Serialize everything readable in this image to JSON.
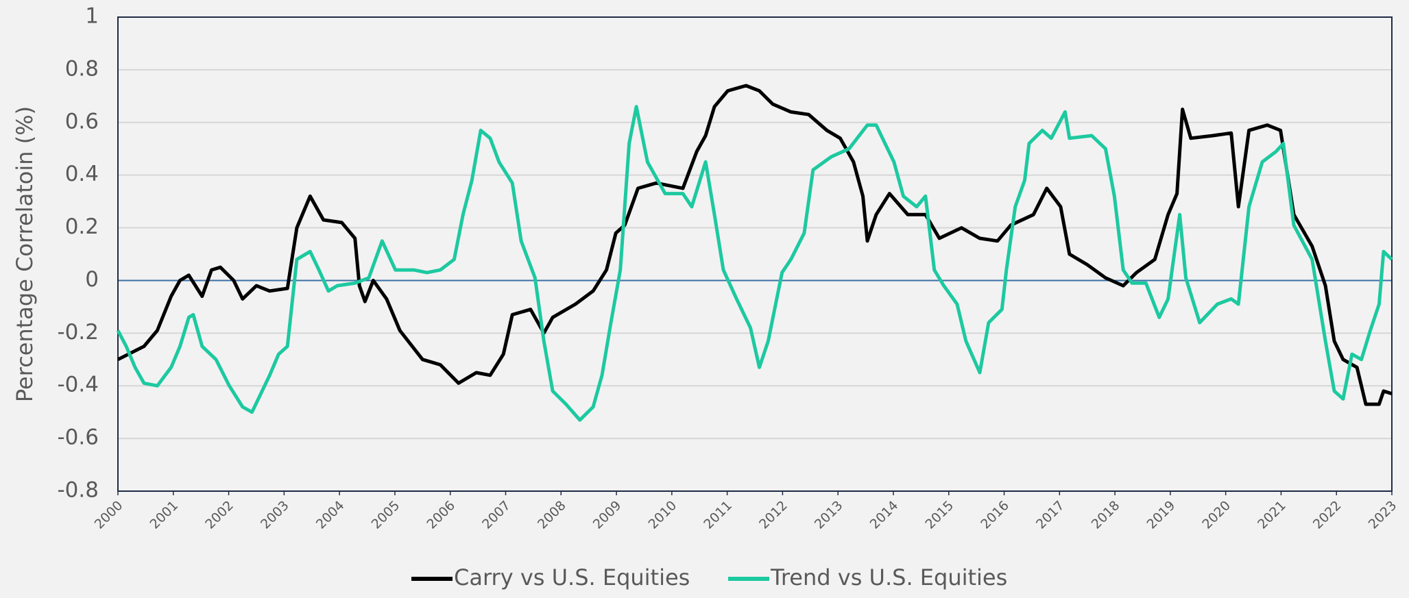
{
  "chart_data": {
    "type": "line",
    "y_label": "Percentage Correlatoin (%)",
    "xlim": [
      2000,
      2023
    ],
    "xticks": [
      2000,
      2001,
      2002,
      2003,
      2004,
      2005,
      2006,
      2007,
      2008,
      2009,
      2010,
      2011,
      2012,
      2013,
      2014,
      2015,
      2016,
      2017,
      2018,
      2019,
      2020,
      2021,
      2022,
      2023
    ],
    "ylim": [
      -0.8,
      1
    ],
    "yticks": [
      -0.8,
      -0.6,
      -0.4,
      -0.2,
      0,
      0.2,
      0.4,
      0.6,
      0.8,
      1
    ],
    "grid": true,
    "legend": "bottom",
    "series": [
      {
        "name": "Carry vs U.S. Equities",
        "color": "#000000",
        "x": [
          2000.0,
          2000.47,
          2000.71,
          2000.96,
          2001.12,
          2001.28,
          2001.52,
          2001.69,
          2001.85,
          2002.09,
          2002.25,
          2002.5,
          2002.74,
          2003.06,
          2003.23,
          2003.47,
          2003.71,
          2004.04,
          2004.28,
          2004.36,
          2004.46,
          2004.61,
          2004.85,
          2005.09,
          2005.5,
          2005.82,
          2006.15,
          2006.47,
          2006.72,
          2006.96,
          2007.12,
          2007.45,
          2007.69,
          2007.85,
          2008.26,
          2008.58,
          2008.82,
          2008.99,
          2009.15,
          2009.39,
          2009.72,
          2010.2,
          2010.45,
          2010.61,
          2010.77,
          2011.01,
          2011.34,
          2011.58,
          2011.82,
          2012.15,
          2012.47,
          2012.8,
          2013.04,
          2013.28,
          2013.45,
          2013.53,
          2013.69,
          2013.93,
          2014.26,
          2014.58,
          2014.83,
          2015.23,
          2015.56,
          2015.88,
          2016.12,
          2016.53,
          2016.77,
          2017.02,
          2017.18,
          2017.5,
          2017.83,
          2018.15,
          2018.39,
          2018.72,
          2018.96,
          2019.12,
          2019.22,
          2019.37,
          2019.77,
          2020.1,
          2020.23,
          2020.42,
          2020.75,
          2020.99,
          2021.23,
          2021.56,
          2021.8,
          2021.96,
          2022.12,
          2022.37,
          2022.53,
          2022.77,
          2022.85,
          2023.0
        ],
        "values": [
          -0.3,
          -0.25,
          -0.19,
          -0.06,
          0.0,
          0.02,
          -0.06,
          0.04,
          0.05,
          0.0,
          -0.07,
          -0.02,
          -0.04,
          -0.03,
          0.2,
          0.32,
          0.23,
          0.22,
          0.16,
          -0.02,
          -0.08,
          0.0,
          -0.07,
          -0.19,
          -0.3,
          -0.32,
          -0.39,
          -0.35,
          -0.36,
          -0.28,
          -0.13,
          -0.11,
          -0.2,
          -0.14,
          -0.09,
          -0.04,
          0.04,
          0.18,
          0.21,
          0.35,
          0.37,
          0.35,
          0.49,
          0.55,
          0.66,
          0.72,
          0.74,
          0.72,
          0.67,
          0.64,
          0.63,
          0.57,
          0.54,
          0.45,
          0.32,
          0.15,
          0.25,
          0.33,
          0.25,
          0.25,
          0.16,
          0.2,
          0.16,
          0.15,
          0.21,
          0.25,
          0.35,
          0.28,
          0.1,
          0.06,
          0.01,
          -0.02,
          0.03,
          0.08,
          0.25,
          0.33,
          0.65,
          0.54,
          0.55,
          0.56,
          0.28,
          0.57,
          0.59,
          0.57,
          0.25,
          0.13,
          -0.02,
          -0.23,
          -0.3,
          -0.33,
          -0.47,
          -0.47,
          -0.42,
          -0.43
        ]
      },
      {
        "name": "Trend vs U.S. Equities",
        "color": "#1dc9a0",
        "x": [
          2000.0,
          2000.15,
          2000.31,
          2000.47,
          2000.71,
          2000.96,
          2001.12,
          2001.28,
          2001.36,
          2001.52,
          2001.77,
          2002.01,
          2002.25,
          2002.42,
          2002.58,
          2002.74,
          2002.9,
          2003.06,
          2003.23,
          2003.47,
          2003.63,
          2003.8,
          2003.96,
          2004.28,
          2004.53,
          2004.77,
          2005.01,
          2005.34,
          2005.58,
          2005.82,
          2006.07,
          2006.23,
          2006.39,
          2006.55,
          2006.72,
          2006.88,
          2007.12,
          2007.28,
          2007.53,
          2007.69,
          2007.85,
          2008.09,
          2008.34,
          2008.58,
          2008.74,
          2008.9,
          2009.07,
          2009.23,
          2009.36,
          2009.56,
          2009.88,
          2010.2,
          2010.36,
          2010.61,
          2010.77,
          2010.93,
          2011.17,
          2011.42,
          2011.58,
          2011.74,
          2011.99,
          2012.15,
          2012.39,
          2012.55,
          2012.88,
          2013.2,
          2013.53,
          2013.69,
          2013.85,
          2014.01,
          2014.18,
          2014.42,
          2014.58,
          2014.74,
          2014.91,
          2015.15,
          2015.31,
          2015.56,
          2015.72,
          2015.96,
          2016.04,
          2016.2,
          2016.37,
          2016.45,
          2016.69,
          2016.85,
          2017.1,
          2017.18,
          2017.58,
          2017.83,
          2017.99,
          2018.15,
          2018.31,
          2018.56,
          2018.8,
          2018.96,
          2019.17,
          2019.28,
          2019.53,
          2019.85,
          2020.1,
          2020.23,
          2020.42,
          2020.66,
          2020.91,
          2021.04,
          2021.23,
          2021.56,
          2021.8,
          2021.96,
          2022.12,
          2022.28,
          2022.45,
          2022.61,
          2022.77,
          2022.85,
          2023.0
        ],
        "values": [
          -0.19,
          -0.25,
          -0.33,
          -0.39,
          -0.4,
          -0.33,
          -0.25,
          -0.14,
          -0.13,
          -0.25,
          -0.3,
          -0.4,
          -0.48,
          -0.5,
          -0.43,
          -0.36,
          -0.28,
          -0.25,
          0.08,
          0.11,
          0.04,
          -0.04,
          -0.02,
          -0.01,
          0.01,
          0.15,
          0.04,
          0.04,
          0.03,
          0.04,
          0.08,
          0.25,
          0.38,
          0.57,
          0.54,
          0.45,
          0.37,
          0.15,
          0.01,
          -0.23,
          -0.42,
          -0.47,
          -0.53,
          -0.48,
          -0.36,
          -0.16,
          0.04,
          0.52,
          0.66,
          0.45,
          0.33,
          0.33,
          0.28,
          0.45,
          0.25,
          0.04,
          -0.07,
          -0.18,
          -0.33,
          -0.23,
          0.03,
          0.08,
          0.18,
          0.42,
          0.47,
          0.5,
          0.59,
          0.59,
          0.52,
          0.45,
          0.32,
          0.28,
          0.32,
          0.04,
          -0.02,
          -0.09,
          -0.23,
          -0.35,
          -0.16,
          -0.11,
          0.04,
          0.28,
          0.38,
          0.52,
          0.57,
          0.54,
          0.64,
          0.54,
          0.55,
          0.5,
          0.32,
          0.04,
          -0.01,
          -0.01,
          -0.14,
          -0.07,
          0.25,
          0.01,
          -0.16,
          -0.09,
          -0.07,
          -0.09,
          0.28,
          0.45,
          0.49,
          0.52,
          0.21,
          0.08,
          -0.23,
          -0.42,
          -0.45,
          -0.28,
          -0.3,
          -0.19,
          -0.09,
          0.11,
          0.08
        ]
      }
    ]
  }
}
